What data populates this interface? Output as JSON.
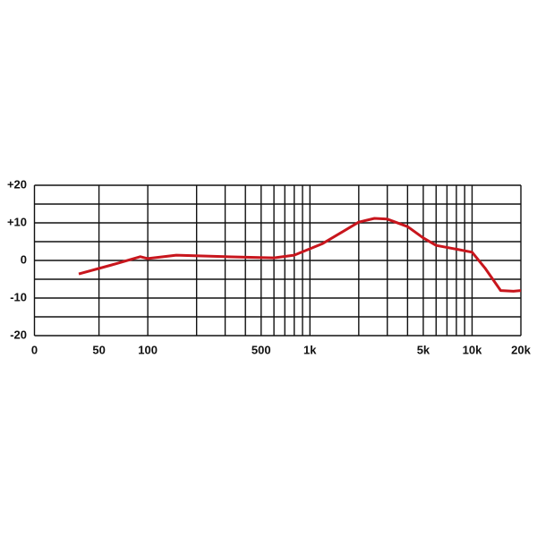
{
  "chart_data": {
    "type": "line",
    "xscale": "log",
    "x": [
      37.5,
      60,
      90,
      100,
      150,
      300,
      600,
      800,
      1200,
      2000,
      2500,
      3000,
      4000,
      5000,
      6000,
      8000,
      10000,
      12000,
      15000,
      18000,
      20000
    ],
    "series": [
      {
        "color": "#c8161d",
        "values": [
          -3.6,
          -1.2,
          1,
          0.5,
          1.4,
          1,
          0.7,
          1.4,
          4.5,
          10.2,
          11.2,
          11,
          9,
          6,
          4,
          3,
          2.2,
          -2,
          -8,
          -8.2,
          -8
        ]
      }
    ],
    "xlim": [
      20,
      20000
    ],
    "xticks": [
      {
        "value": 20,
        "label": "0"
      },
      50,
      100,
      500,
      {
        "value": 1000,
        "label": "1k"
      },
      {
        "value": 5000,
        "label": "5k"
      },
      {
        "value": 10000,
        "label": "10k"
      },
      {
        "value": 20000,
        "label": "20k"
      }
    ],
    "xminor": [
      200,
      300,
      400,
      600,
      700,
      800,
      900,
      2000,
      3000,
      4000,
      6000,
      7000,
      8000,
      9000
    ],
    "ylim": [
      -20,
      20
    ],
    "yticks": [
      {
        "value": -20,
        "label": "-20"
      },
      {
        "value": -10,
        "label": "-10"
      },
      0,
      {
        "value": 10,
        "label": "+10"
      },
      {
        "value": 20,
        "label": "+20"
      }
    ],
    "yminor": [
      -15,
      -5,
      5,
      15
    ],
    "grid": true
  }
}
